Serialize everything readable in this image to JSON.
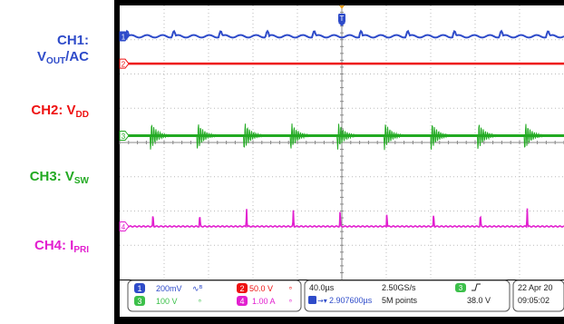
{
  "channels": [
    {
      "id": "CH1",
      "main": "CH1:",
      "name": "V",
      "sub": "OUT",
      "suffix": "/AC",
      "color": "#2E4BC9"
    },
    {
      "id": "CH2",
      "main": "CH2: ",
      "name": "V",
      "sub": "DD",
      "suffix": "",
      "color": "#EE1111"
    },
    {
      "id": "CH3",
      "main": "CH3: ",
      "name": "V",
      "sub": "SW",
      "suffix": "",
      "color": "#22AA22"
    },
    {
      "id": "CH4",
      "main": "CH4: ",
      "name": "I",
      "sub": "PRI",
      "suffix": "",
      "color": "#E21FCF"
    }
  ],
  "trigger_marker": "T",
  "ch_markers": [
    "1",
    "2",
    "3",
    "4"
  ],
  "status_bar": {
    "ch1_scale": "200mV",
    "ch2_scale": "50.0 V",
    "ch3_scale": "100 V",
    "ch4_scale": "1.00 A",
    "timebase": "40.0µs",
    "sample_rate": "2.50GS/s",
    "trigger_offset": "2.907600µs",
    "record_length": "5M points",
    "trigger_level": "38.0 V",
    "date": "22 Apr 20",
    "time": "09:05:02"
  },
  "chart_data": {
    "type": "line",
    "title": "",
    "xlabel": "",
    "ylabel": "",
    "grid": true,
    "x_divisions": 10,
    "y_divisions": 8,
    "series": [
      {
        "name": "CH1: VOUT/AC",
        "waveform": "ripple",
        "cycles": 9.5,
        "baseline_div": 7.1,
        "ripple_div": 0.15
      },
      {
        "name": "CH2: VDD",
        "waveform": "dc",
        "baseline_div": 6.3
      },
      {
        "name": "CH3: VSW",
        "waveform": "switching_ringing",
        "cycles": 9.5,
        "baseline_div": 4.2,
        "ring_div": 0.45
      },
      {
        "name": "CH4: IPRI",
        "waveform": "current_spikes",
        "cycles": 9.5,
        "baseline_div": 1.55,
        "spike_div": 0.55
      }
    ]
  }
}
